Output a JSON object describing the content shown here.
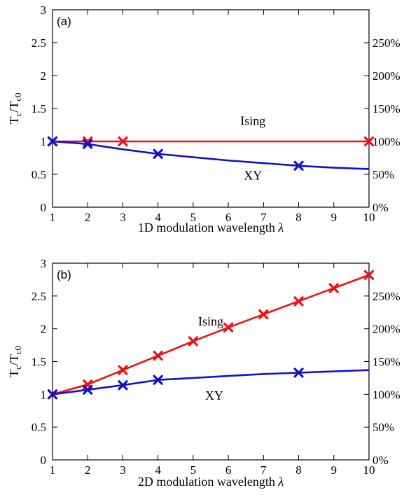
{
  "colors": {
    "ising": "#ee1111",
    "xy": "#1111cc"
  },
  "chart_data": [
    {
      "type": "line",
      "panel_label": "(a)",
      "xlabel_prefix": "1D modulation wavelength ",
      "xlabel_symbol": "λ",
      "ylabel": {
        "main": "T",
        "sub1": "c",
        "slash": "/T",
        "sub2": "c0"
      },
      "xlim": [
        1,
        10
      ],
      "ylim": [
        0,
        3
      ],
      "x_ticks": [
        1,
        2,
        3,
        4,
        5,
        6,
        7,
        8,
        9,
        10
      ],
      "x_tick_labels": [
        "1",
        "2",
        "3",
        "4",
        "5",
        "6",
        "7",
        "8",
        "9",
        "10"
      ],
      "y_ticks": [
        0,
        0.5,
        1,
        1.5,
        2,
        2.5,
        3
      ],
      "y_tick_labels": [
        "0",
        "0.5",
        "1",
        "1.5",
        "2",
        "2.5",
        "3"
      ],
      "y2_ticks": [
        0,
        0.5,
        1,
        1.5,
        2,
        2.5
      ],
      "y2_tick_labels": [
        "0%",
        "50%",
        "100%",
        "150%",
        "200%",
        "250%"
      ],
      "series": [
        {
          "name": "Ising",
          "color_key": "ising",
          "line": {
            "x": [
              1,
              10
            ],
            "y": [
              1,
              1
            ]
          },
          "markers": {
            "x": [
              1,
              2,
              3,
              10
            ],
            "y": [
              1,
              1,
              1,
              1
            ]
          },
          "label_at": {
            "x": 6.7,
            "y": 1.25
          }
        },
        {
          "name": "XY",
          "color_key": "xy",
          "line": {
            "x": [
              1,
              2,
              3,
              4,
              5,
              6,
              7,
              8,
              9,
              10
            ],
            "y": [
              1.0,
              0.96,
              0.88,
              0.81,
              0.76,
              0.71,
              0.67,
              0.63,
              0.6,
              0.58
            ]
          },
          "markers": {
            "x": [
              1,
              2,
              4,
              8
            ],
            "y": [
              1.0,
              0.96,
              0.81,
              0.63
            ]
          },
          "label_at": {
            "x": 6.7,
            "y": 0.42
          }
        }
      ]
    },
    {
      "type": "line",
      "panel_label": "(b)",
      "xlabel_prefix": "2D modulation wavelength ",
      "xlabel_symbol": "λ",
      "ylabel": {
        "main": "T",
        "sub1": "c",
        "slash": "/T",
        "sub2": "c0"
      },
      "xlim": [
        1,
        10
      ],
      "ylim": [
        0,
        3
      ],
      "x_ticks": [
        1,
        2,
        3,
        4,
        5,
        6,
        7,
        8,
        9,
        10
      ],
      "x_tick_labels": [
        "1",
        "2",
        "3",
        "4",
        "5",
        "6",
        "7",
        "8",
        "9",
        "10"
      ],
      "y_ticks": [
        0,
        0.5,
        1,
        1.5,
        2,
        2.5,
        3
      ],
      "y_tick_labels": [
        "0",
        "0.5",
        "1",
        "1.5",
        "2",
        "2.5",
        "3"
      ],
      "y2_ticks": [
        0,
        0.5,
        1,
        1.5,
        2,
        2.5
      ],
      "y2_tick_labels": [
        "0%",
        "50%",
        "100%",
        "150%",
        "200%",
        "250%"
      ],
      "series": [
        {
          "name": "Ising",
          "color_key": "ising",
          "line": {
            "x": [
              1,
              2,
              3,
              4,
              5,
              6,
              7,
              8,
              9,
              10
            ],
            "y": [
              1.0,
              1.15,
              1.37,
              1.59,
              1.81,
              2.02,
              2.22,
              2.42,
              2.62,
              2.82
            ]
          },
          "markers": {
            "x": [
              1,
              2,
              3,
              4,
              5,
              6,
              7,
              8,
              9,
              10
            ],
            "y": [
              1.0,
              1.15,
              1.37,
              1.59,
              1.81,
              2.02,
              2.22,
              2.42,
              2.62,
              2.82
            ]
          },
          "label_at": {
            "x": 5.5,
            "y": 2.05
          }
        },
        {
          "name": "XY",
          "color_key": "xy",
          "line": {
            "x": [
              1,
              2,
              3,
              4,
              5,
              6,
              7,
              8,
              9,
              10
            ],
            "y": [
              1.0,
              1.07,
              1.14,
              1.22,
              1.25,
              1.28,
              1.31,
              1.33,
              1.35,
              1.37
            ]
          },
          "markers": {
            "x": [
              1,
              2,
              3,
              4,
              8
            ],
            "y": [
              1.0,
              1.07,
              1.14,
              1.22,
              1.33
            ]
          },
          "label_at": {
            "x": 5.6,
            "y": 0.92
          }
        }
      ]
    }
  ]
}
